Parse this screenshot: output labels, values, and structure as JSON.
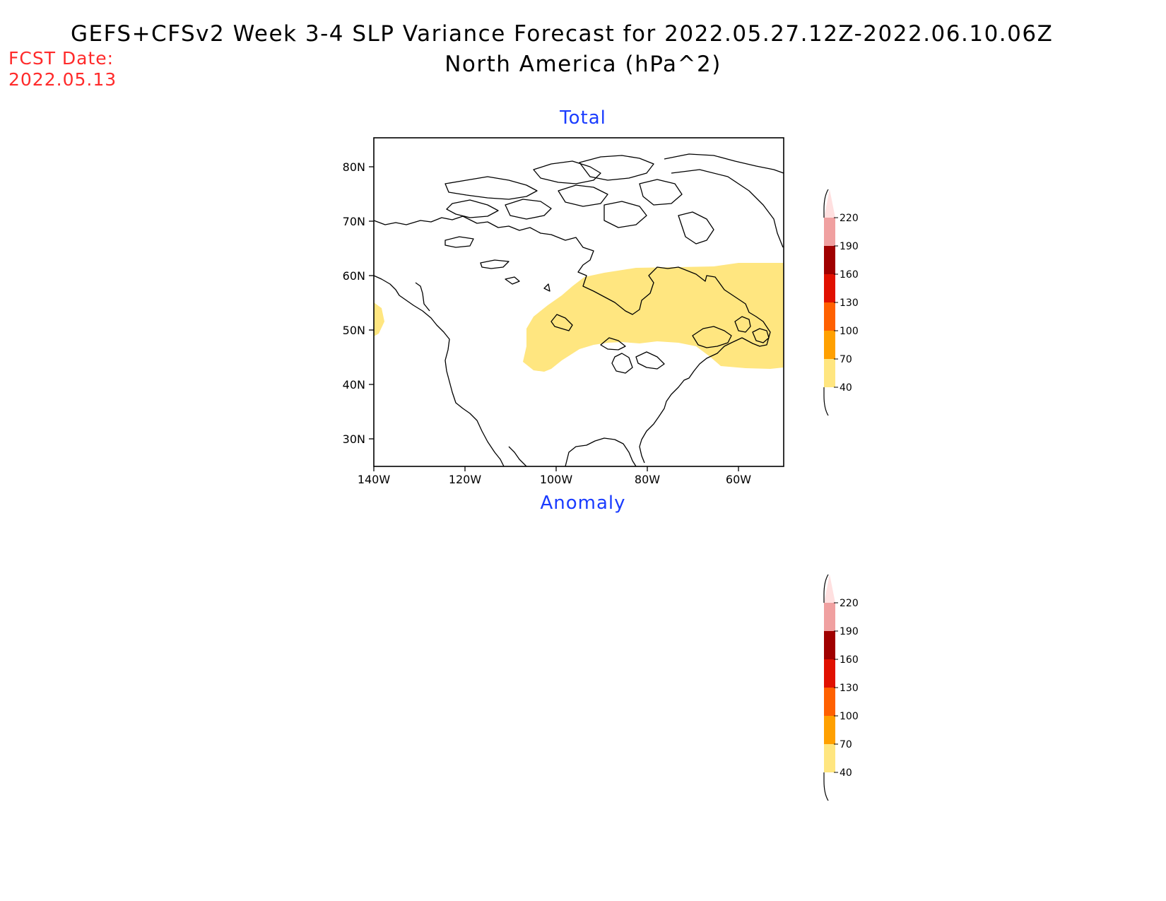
{
  "title": {
    "line1": "GEFS+CFSv2 Week 3-4 SLP Variance Forecast for 2022.05.27.12Z-2022.06.10.06Z",
    "line2": "North America (hPa^2)"
  },
  "fcst_date": {
    "label": "FCST Date:",
    "value": "2022.05.13"
  },
  "panels": [
    {
      "title": "Total",
      "lat_labels": [
        "80N",
        "70N",
        "60N",
        "50N",
        "40N",
        "30N"
      ],
      "lon_labels": [
        "140W",
        "120W",
        "100W",
        "80W",
        "60W"
      ]
    },
    {
      "title": "Anomaly"
    }
  ],
  "colorbar": {
    "levels": [
      "40",
      "70",
      "100",
      "130",
      "160",
      "190",
      "220"
    ],
    "colors": [
      "#ffe680",
      "#ffa000",
      "#ff6000",
      "#e01000",
      "#a00000",
      "#f0a0a0",
      "#ffe0e0"
    ]
  },
  "map_extent": {
    "lon": [
      -140,
      -50
    ],
    "lat": [
      25,
      85
    ]
  },
  "shading": [
    {
      "region": "Central-Eastern Canada to Great Lakes and Maritimes",
      "range": "40-70"
    }
  ]
}
